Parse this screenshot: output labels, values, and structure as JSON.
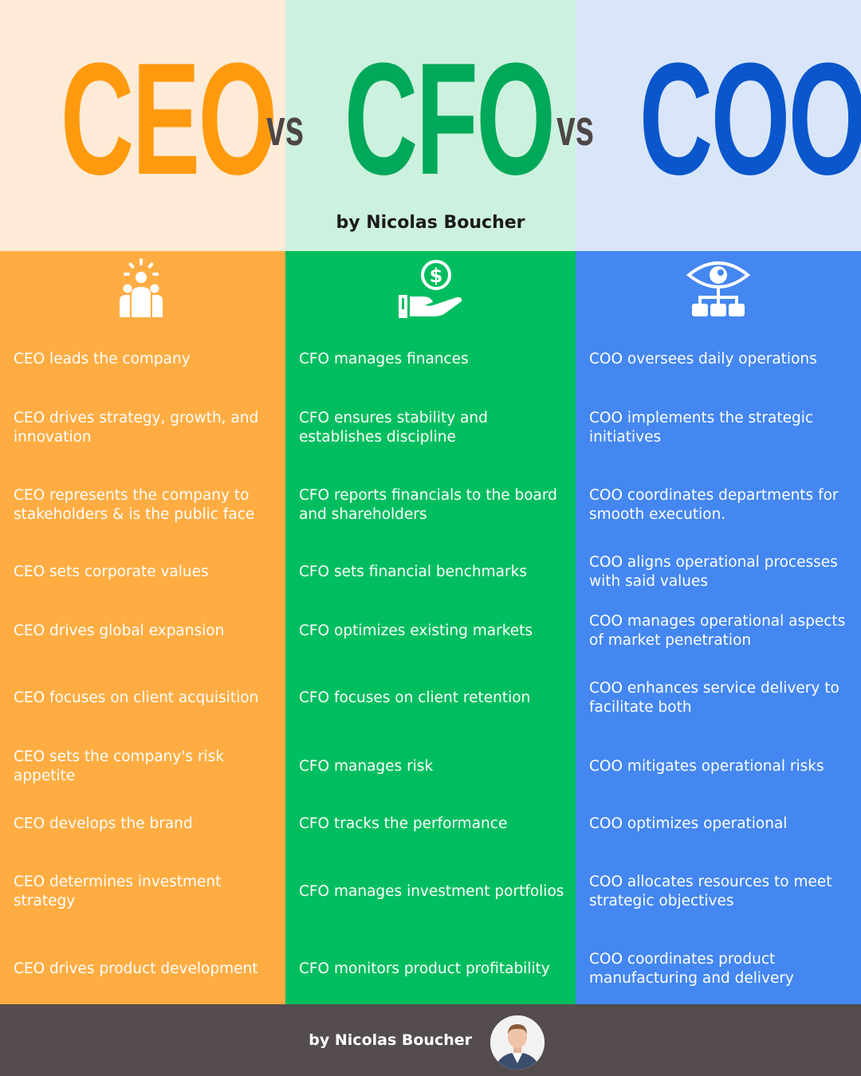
{
  "header": {
    "col1_title": "CEO",
    "col2_title": "CFO",
    "col3_title": "COO",
    "vs_left": "vs",
    "vs_right": "vs",
    "byline": "by Nicolas Boucher"
  },
  "colors": {
    "ceo": "#ff9a0e",
    "cfo": "#00a859",
    "coo": "#0a56cc",
    "vs": "#4d4646",
    "ceo_panel": "#ffad43",
    "cfo_panel": "#00be5f",
    "coo_panel": "#4487f0",
    "footer": "#544c4c"
  },
  "icons": {
    "ceo": "team-leader-icon",
    "cfo": "dollar-hand-icon",
    "coo": "eye-hierarchy-icon"
  },
  "columns": {
    "ceo": [
      "CEO leads the company",
      "CEO drives strategy, growth, and innovation",
      "CEO represents the company to stakeholders & is the public face",
      "CEO sets corporate values",
      "CEO drives global expansion",
      "CEO focuses on client acquisition",
      "CEO sets the company's risk appetite",
      "CEO develops the brand",
      "CEO determines investment strategy",
      "CEO drives product development"
    ],
    "cfo": [
      "CFO manages finances",
      "CFO ensures stability and establishes discipline",
      "CFO reports financials to the board and shareholders",
      "CFO sets financial benchmarks",
      "CFO optimizes existing markets",
      "CFO focuses on client retention",
      "CFO manages risk",
      "CFO tracks the performance",
      "CFO manages investment portfolios",
      "CFO monitors product profitability"
    ],
    "coo": [
      "COO oversees daily operations",
      "COO implements the strategic initiatives",
      "COO coordinates departments for smooth execution.",
      "COO aligns operational processes with said values",
      "COO manages operational aspects of market penetration",
      "COO enhances service delivery to facilitate both",
      "COO mitigates operational risks",
      "COO optimizes operational",
      "COO allocates resources to meet strategic objectives",
      "COO coordinates product manufacturing and delivery"
    ]
  },
  "footer": {
    "name": "by Nicolas Boucher"
  }
}
